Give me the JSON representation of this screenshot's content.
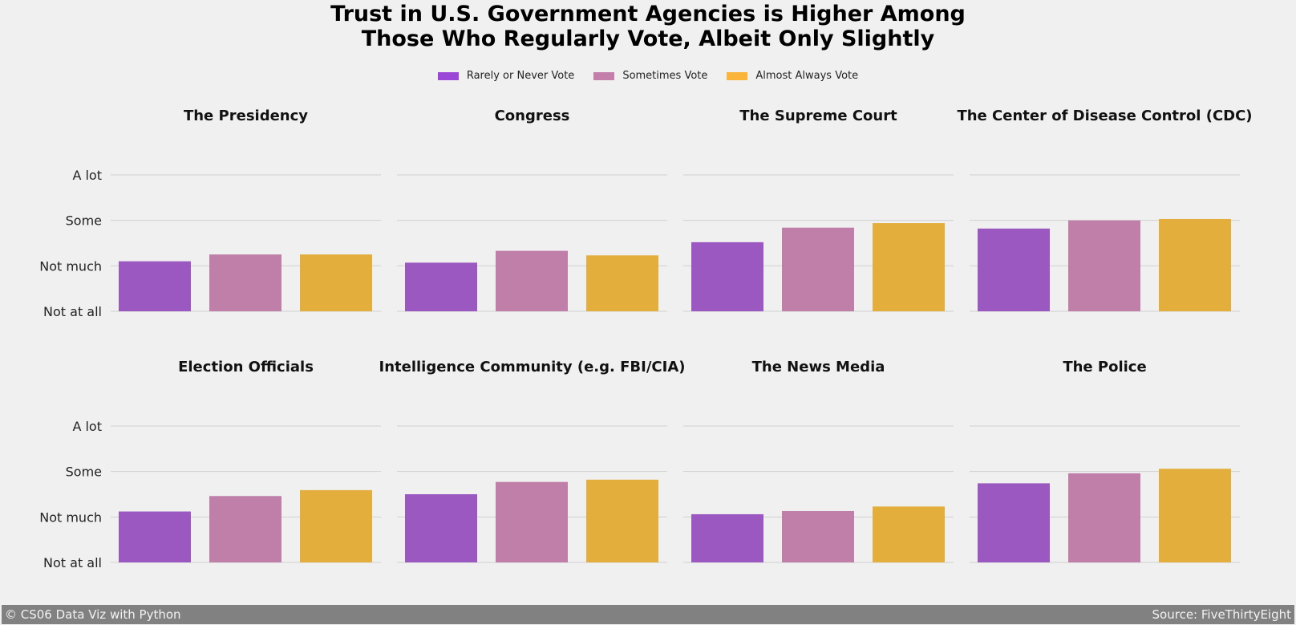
{
  "title": "Trust in U.S. Government Agencies is Higher Among\nThose Who Regularly Vote, Albeit Only Slightly",
  "legend": [
    {
      "label": "Rarely or Never Vote",
      "color": "#9b46d6"
    },
    {
      "label": "Sometimes Vote",
      "color": "#c37ea9"
    },
    {
      "label": "Almost Always Vote",
      "color": "#fbb43a"
    }
  ],
  "colors": {
    "bar_rarely": "#9a58c0",
    "bar_sometimes": "#bf7fa8",
    "bar_always": "#e3ae3b",
    "grid": "#d0d0d0",
    "background": "#f0f0f0"
  },
  "chart_data": [
    {
      "type": "bar",
      "title": "The Presidency",
      "ytick_labels": [
        "Not at all",
        "Not much",
        "Some",
        "A lot"
      ],
      "ylim": [
        1,
        4
      ],
      "series": [
        {
          "name": "Rarely or Never Vote",
          "values": [
            2.1
          ]
        },
        {
          "name": "Sometimes Vote",
          "values": [
            2.25
          ]
        },
        {
          "name": "Almost Always Vote",
          "values": [
            2.25
          ]
        }
      ]
    },
    {
      "type": "bar",
      "title": "Congress",
      "ytick_labels": [
        "Not at all",
        "Not much",
        "Some",
        "A lot"
      ],
      "ylim": [
        1,
        4
      ],
      "series": [
        {
          "name": "Rarely or Never Vote",
          "values": [
            2.07
          ]
        },
        {
          "name": "Sometimes Vote",
          "values": [
            2.33
          ]
        },
        {
          "name": "Almost Always Vote",
          "values": [
            2.23
          ]
        }
      ]
    },
    {
      "type": "bar",
      "title": "The Supreme Court",
      "ytick_labels": [
        "Not at all",
        "Not much",
        "Some",
        "A lot"
      ],
      "ylim": [
        1,
        4
      ],
      "series": [
        {
          "name": "Rarely or Never Vote",
          "values": [
            2.52
          ]
        },
        {
          "name": "Sometimes Vote",
          "values": [
            2.84
          ]
        },
        {
          "name": "Almost Always Vote",
          "values": [
            2.94
          ]
        }
      ]
    },
    {
      "type": "bar",
      "title": "The Center of Disease Control (CDC)",
      "ytick_labels": [
        "Not at all",
        "Not much",
        "Some",
        "A lot"
      ],
      "ylim": [
        1,
        4
      ],
      "series": [
        {
          "name": "Rarely or Never Vote",
          "values": [
            2.82
          ]
        },
        {
          "name": "Sometimes Vote",
          "values": [
            3.0
          ]
        },
        {
          "name": "Almost Always Vote",
          "values": [
            3.03
          ]
        }
      ]
    },
    {
      "type": "bar",
      "title": "Election Officials",
      "ytick_labels": [
        "Not at all",
        "Not much",
        "Some",
        "A lot"
      ],
      "ylim": [
        1,
        4
      ],
      "series": [
        {
          "name": "Rarely or Never Vote",
          "values": [
            2.12
          ]
        },
        {
          "name": "Sometimes Vote",
          "values": [
            2.46
          ]
        },
        {
          "name": "Almost Always Vote",
          "values": [
            2.59
          ]
        }
      ]
    },
    {
      "type": "bar",
      "title": "Intelligence Community (e.g. FBI/CIA)",
      "ytick_labels": [
        "Not at all",
        "Not much",
        "Some",
        "A lot"
      ],
      "ylim": [
        1,
        4
      ],
      "series": [
        {
          "name": "Rarely or Never Vote",
          "values": [
            2.5
          ]
        },
        {
          "name": "Sometimes Vote",
          "values": [
            2.77
          ]
        },
        {
          "name": "Almost Always Vote",
          "values": [
            2.82
          ]
        }
      ]
    },
    {
      "type": "bar",
      "title": "The News Media",
      "ytick_labels": [
        "Not at all",
        "Not much",
        "Some",
        "A lot"
      ],
      "ylim": [
        1,
        4
      ],
      "series": [
        {
          "name": "Rarely or Never Vote",
          "values": [
            2.06
          ]
        },
        {
          "name": "Sometimes Vote",
          "values": [
            2.13
          ]
        },
        {
          "name": "Almost Always Vote",
          "values": [
            2.23
          ]
        }
      ]
    },
    {
      "type": "bar",
      "title": "The Police",
      "ytick_labels": [
        "Not at all",
        "Not much",
        "Some",
        "A lot"
      ],
      "ylim": [
        1,
        4
      ],
      "series": [
        {
          "name": "Rarely or Never Vote",
          "values": [
            2.74
          ]
        },
        {
          "name": "Sometimes Vote",
          "values": [
            2.96
          ]
        },
        {
          "name": "Almost Always Vote",
          "values": [
            3.06
          ]
        }
      ]
    }
  ],
  "footer": {
    "left": "© CS06 Data Viz with Python",
    "right": "Source: FiveThirtyEight"
  }
}
